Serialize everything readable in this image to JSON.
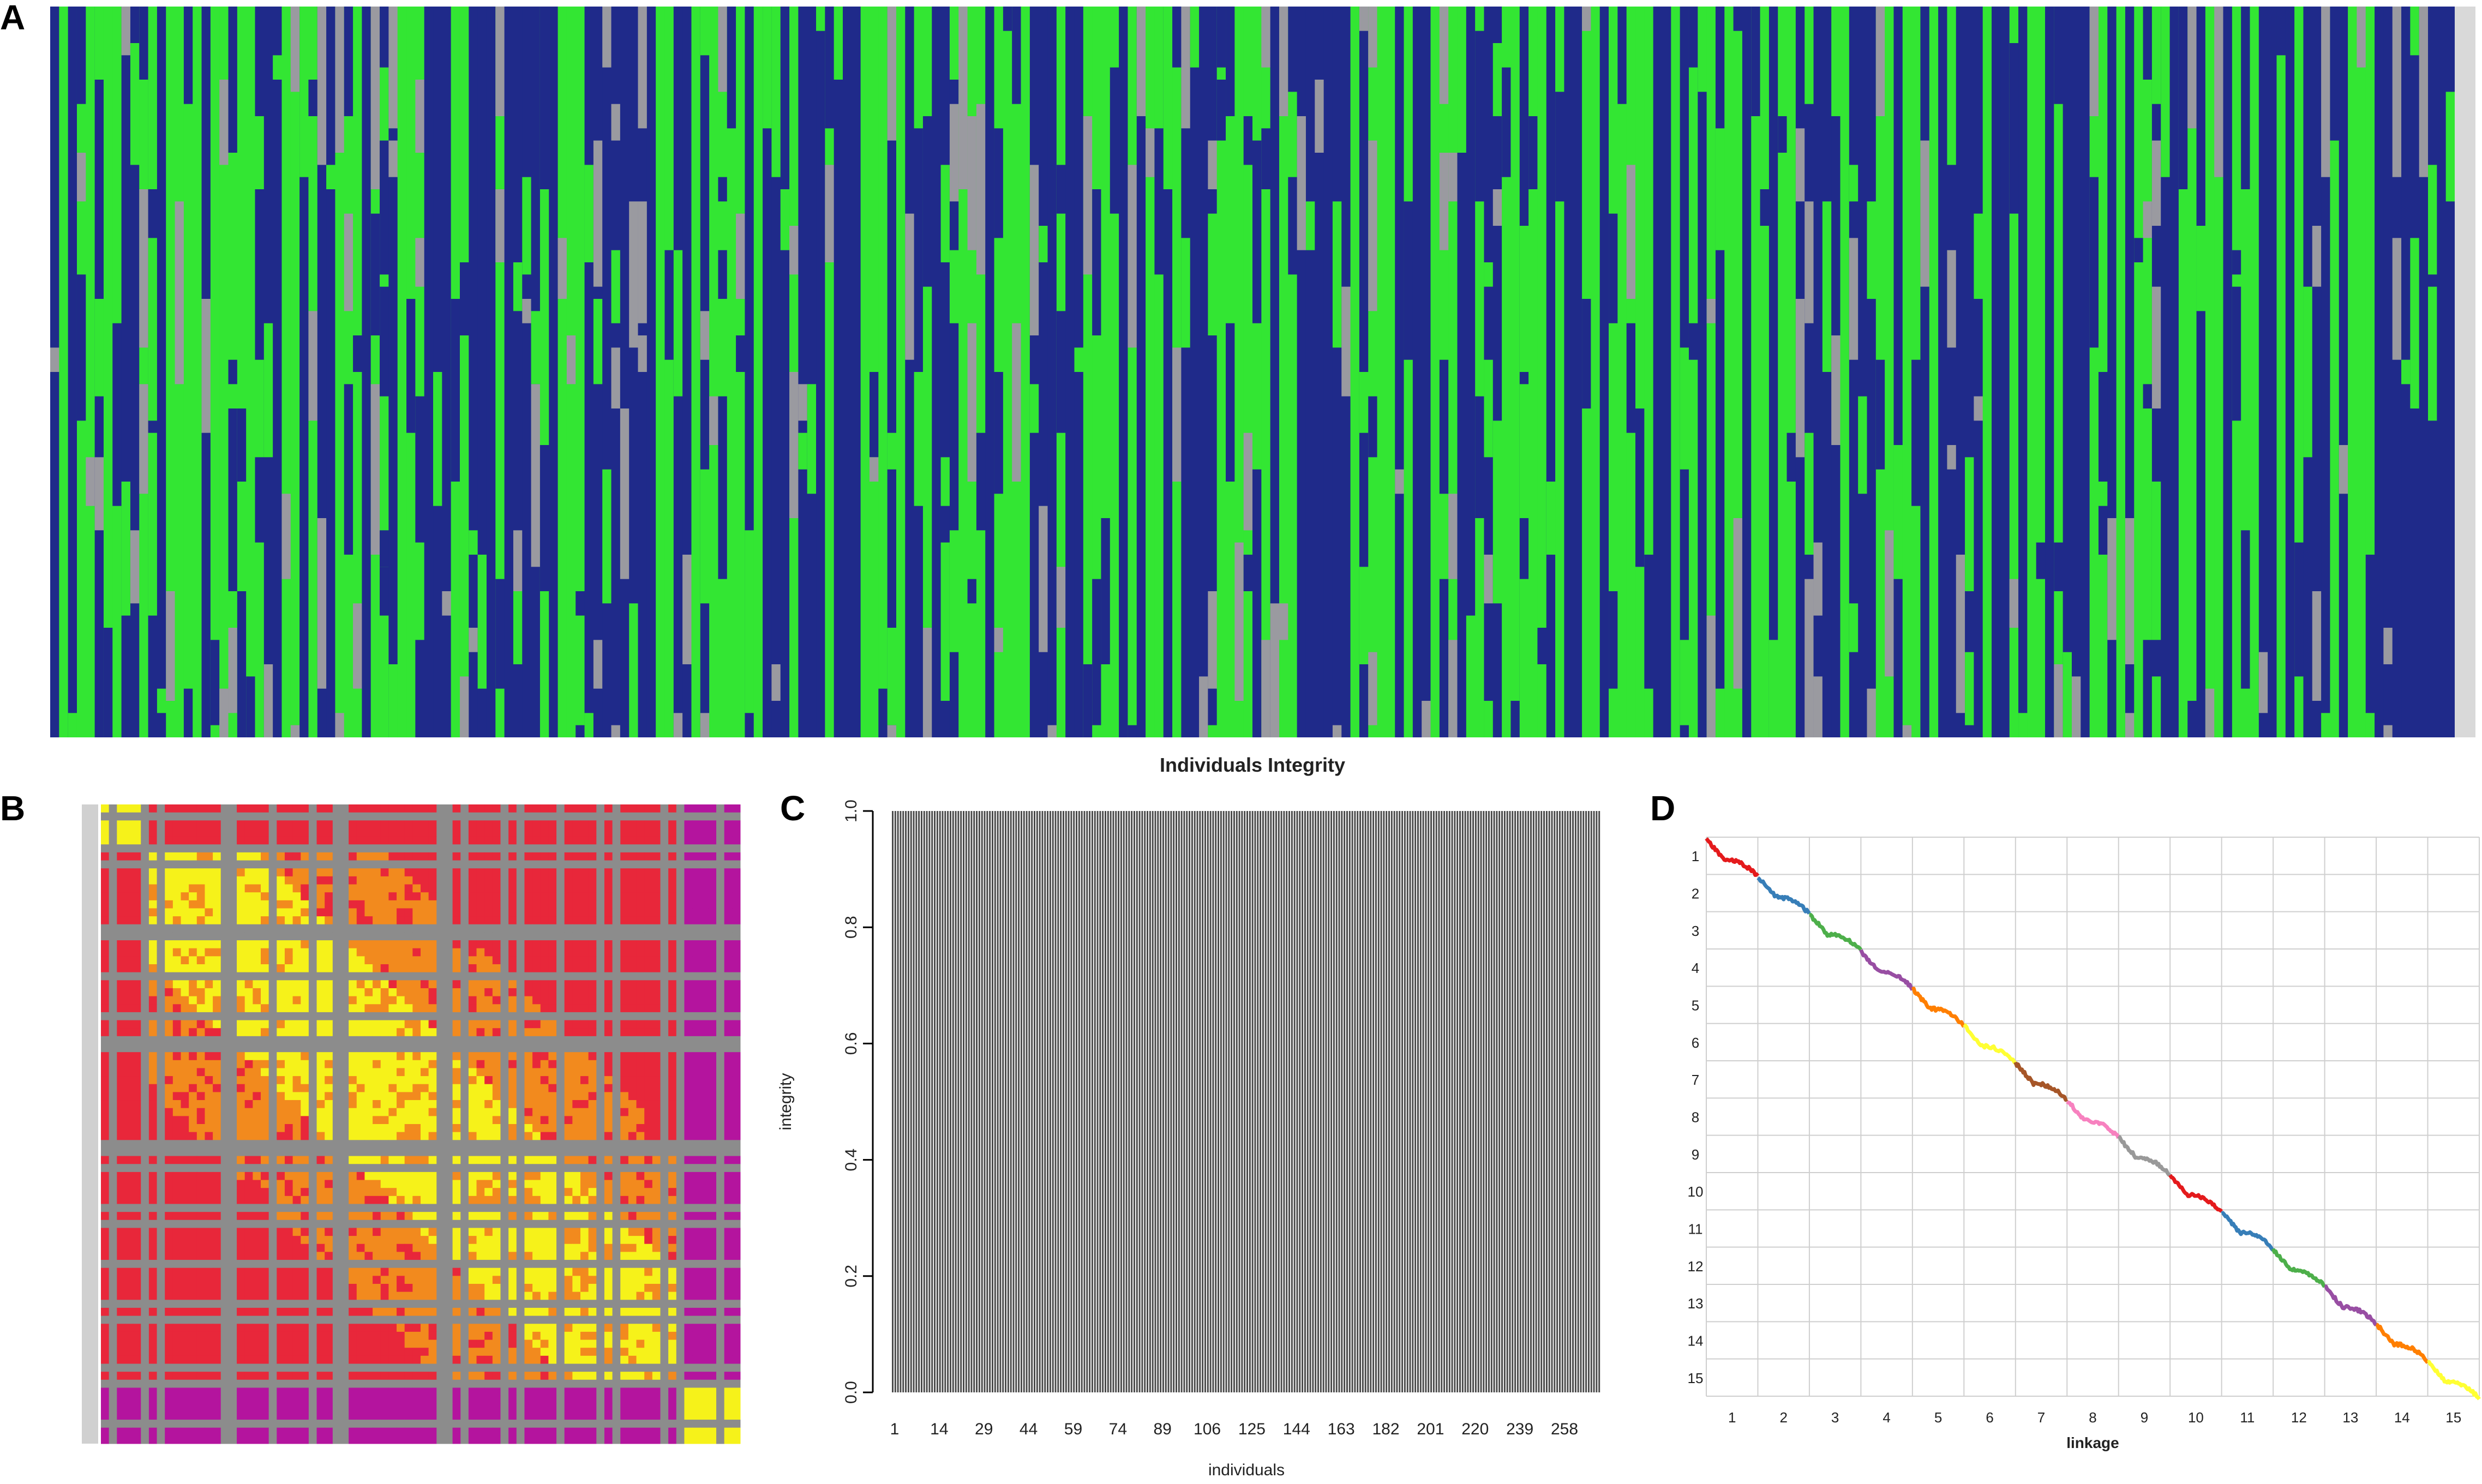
{
  "panels": {
    "a": {
      "letter": "A"
    },
    "b": {
      "letter": "B"
    },
    "c": {
      "letter": "C"
    },
    "d": {
      "letter": "D"
    }
  },
  "chart_data": [
    {
      "id": "A",
      "type": "heatmap",
      "title": "",
      "xlabel": "Individuals Integrity",
      "ylabel": "",
      "n_columns": 270,
      "n_rows": 60,
      "colors": {
        "allele_1": "#1f2a8a",
        "allele_2": "#33e633",
        "missing": "#9a9aa0"
      }
    },
    {
      "id": "B",
      "type": "heatmap",
      "title": "",
      "xlabel": "",
      "ylabel": "",
      "matrix_size": 80,
      "colors": {
        "missing": "#8c8c8c",
        "low": "#b4149e",
        "mid": "#e8273a",
        "high": "#f28a1e",
        "max": "#f6f21a"
      }
    },
    {
      "id": "C",
      "type": "bar",
      "title": "",
      "xlabel": "individuals",
      "ylabel": "integrity",
      "n_bars": 270,
      "bar_value": 1.0,
      "ylim": [
        0,
        1
      ],
      "yticks": [
        "0.0",
        "0.2",
        "0.4",
        "0.6",
        "0.8",
        "1.0"
      ],
      "xtick_labels": [
        "1",
        "14",
        "29",
        "44",
        "59",
        "74",
        "89",
        "106",
        "125",
        "144",
        "163",
        "182",
        "201",
        "220",
        "239",
        "258"
      ],
      "colors": {
        "bar": "#4a4a4a"
      }
    },
    {
      "id": "D",
      "type": "line",
      "title": "",
      "xlabel": "linkage",
      "ylabel": "",
      "groups": [
        "1",
        "2",
        "3",
        "4",
        "5",
        "6",
        "7",
        "8",
        "9",
        "10",
        "11",
        "12",
        "13",
        "14",
        "15"
      ],
      "x_tick_labels": [
        "1",
        "2",
        "3",
        "4",
        "5",
        "6",
        "7",
        "8",
        "9",
        "10",
        "11",
        "12",
        "13",
        "14",
        "15"
      ],
      "y_tick_labels": [
        "1",
        "2",
        "3",
        "4",
        "5",
        "6",
        "7",
        "8",
        "9",
        "10",
        "11",
        "12",
        "13",
        "14",
        "15"
      ],
      "series_colors": [
        "#e41a1c",
        "#377eb8",
        "#4daf4a",
        "#984ea3",
        "#ff7f00",
        "#ffff33",
        "#a65628",
        "#f781bf",
        "#999999",
        "#e41a1c",
        "#377eb8",
        "#4daf4a",
        "#984ea3",
        "#ff7f00",
        "#ffff33"
      ],
      "grid": true
    }
  ]
}
